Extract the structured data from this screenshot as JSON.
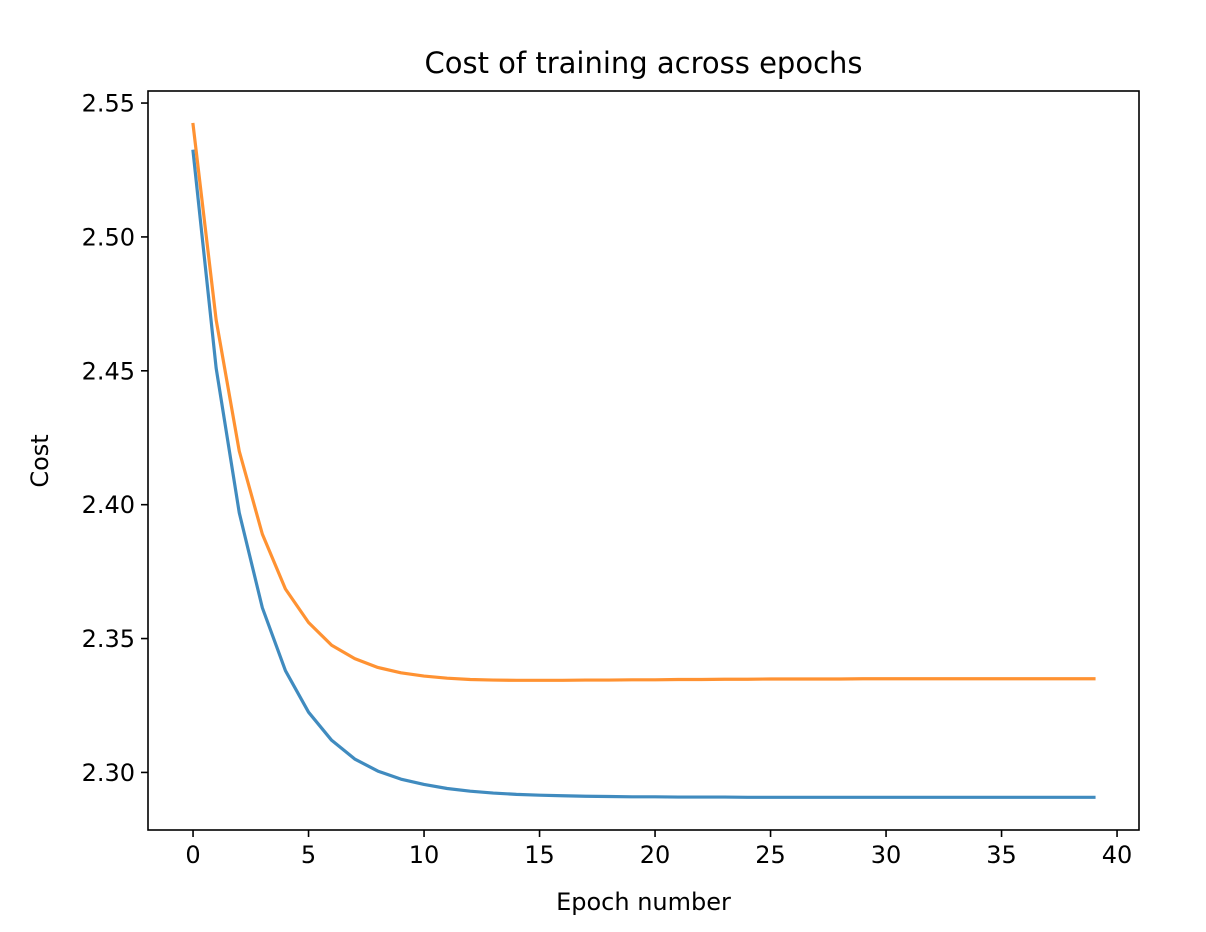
{
  "chart_data": {
    "type": "line",
    "title": "Cost of training across epochs",
    "xlabel": "Epoch number",
    "ylabel": "Cost",
    "xlim": [
      -1.95,
      40.95
    ],
    "ylim": [
      2.2785,
      2.5545
    ],
    "xticks": [
      0,
      5,
      10,
      15,
      20,
      25,
      30,
      35,
      40
    ],
    "yticks": [
      2.3,
      2.35,
      2.4,
      2.45,
      2.5,
      2.55
    ],
    "xtick_labels": [
      "0",
      "5",
      "10",
      "15",
      "20",
      "25",
      "30",
      "35",
      "40"
    ],
    "ytick_labels": [
      "2.30",
      "2.35",
      "2.40",
      "2.45",
      "2.50",
      "2.55"
    ],
    "grid": false,
    "legend": "none",
    "x": [
      0,
      1,
      2,
      3,
      4,
      5,
      6,
      7,
      8,
      9,
      10,
      11,
      12,
      13,
      14,
      15,
      16,
      17,
      18,
      19,
      20,
      21,
      22,
      23,
      24,
      25,
      26,
      27,
      28,
      29,
      30,
      31,
      32,
      33,
      34,
      35,
      36,
      37,
      38,
      39
    ],
    "series": [
      {
        "color": "#1f77b4",
        "values": [
          2.532,
          2.451,
          2.397,
          2.3615,
          2.338,
          2.3225,
          2.312,
          2.305,
          2.3005,
          2.2975,
          2.2955,
          2.294,
          2.293,
          2.2923,
          2.2918,
          2.2915,
          2.2913,
          2.2911,
          2.291,
          2.2909,
          2.2909,
          2.2908,
          2.2908,
          2.2908,
          2.2907,
          2.2907,
          2.2907,
          2.2907,
          2.2907,
          2.2907,
          2.2907,
          2.2907,
          2.2907,
          2.2907,
          2.2907,
          2.2907,
          2.2907,
          2.2907,
          2.2907,
          2.2907
        ]
      },
      {
        "color": "#ff7f0e",
        "values": [
          2.542,
          2.469,
          2.42,
          2.389,
          2.3685,
          2.356,
          2.3475,
          2.3425,
          2.3392,
          2.3372,
          2.336,
          2.3352,
          2.3347,
          2.3345,
          2.3344,
          2.3344,
          2.3344,
          2.3345,
          2.3345,
          2.3346,
          2.3346,
          2.3347,
          2.3347,
          2.3348,
          2.3348,
          2.3349,
          2.3349,
          2.3349,
          2.3349,
          2.335,
          2.335,
          2.335,
          2.335,
          2.335,
          2.335,
          2.335,
          2.335,
          2.335,
          2.335,
          2.335
        ]
      }
    ]
  }
}
